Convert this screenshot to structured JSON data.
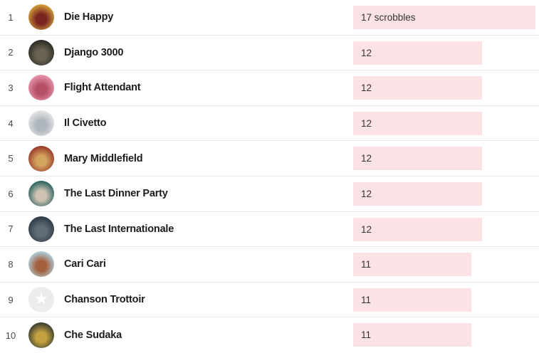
{
  "chart_data": {
    "type": "bar",
    "orientation": "horizontal",
    "title": "",
    "unit": "scrobbles",
    "categories": [
      "Die Happy",
      "Django 3000",
      "Flight Attendant",
      "Il Civetto",
      "Mary Middlefield",
      "The Last Dinner Party",
      "The Last Internationale",
      "Cari Cari",
      "Chanson Trottoir",
      "Che Sudaka"
    ],
    "values": [
      17,
      12,
      12,
      12,
      12,
      12,
      12,
      11,
      11,
      11
    ],
    "value_labels": [
      "17 scrobbles",
      "12",
      "12",
      "12",
      "12",
      "12",
      "12",
      "11",
      "11",
      "11"
    ],
    "max_value": 17,
    "xlim": [
      0,
      17
    ],
    "grid": false,
    "legend": false,
    "bar_color": "#fae2e5"
  },
  "list": {
    "rows": [
      {
        "rank": "1",
        "artist": "Die Happy",
        "value": 17,
        "bar_label": "17 scrobbles",
        "avatar": {
          "type": "photo",
          "inner": "#7a2420",
          "outer": "#d2a13c"
        }
      },
      {
        "rank": "2",
        "artist": "Django 3000",
        "value": 12,
        "bar_label": "12",
        "avatar": {
          "type": "photo",
          "inner": "#6a6352",
          "outer": "#2c2b24"
        }
      },
      {
        "rank": "3",
        "artist": "Flight Attendant",
        "value": 12,
        "bar_label": "12",
        "avatar": {
          "type": "photo",
          "inner": "#b44f66",
          "outer": "#e794ab"
        }
      },
      {
        "rank": "4",
        "artist": "Il Civetto",
        "value": 12,
        "bar_label": "12",
        "avatar": {
          "type": "photo",
          "inner": "#aeb6bd",
          "outer": "#e4e5e7"
        }
      },
      {
        "rank": "5",
        "artist": "Mary Middlefield",
        "value": 12,
        "bar_label": "12",
        "avatar": {
          "type": "photo",
          "inner": "#d3a45e",
          "outer": "#99392a"
        }
      },
      {
        "rank": "6",
        "artist": "The Last Dinner Party",
        "value": 12,
        "bar_label": "12",
        "avatar": {
          "type": "photo",
          "inner": "#cfc2b2",
          "outer": "#2a6360"
        }
      },
      {
        "rank": "7",
        "artist": "The Last Internationale",
        "value": 12,
        "bar_label": "12",
        "avatar": {
          "type": "photo",
          "inner": "#5f6d79",
          "outer": "#2e3a44"
        }
      },
      {
        "rank": "8",
        "artist": "Cari Cari",
        "value": 11,
        "bar_label": "11",
        "avatar": {
          "type": "photo",
          "inner": "#a4603c",
          "outer": "#aecfdc"
        }
      },
      {
        "rank": "9",
        "artist": "Chanson Trottoir",
        "value": 11,
        "bar_label": "11",
        "avatar": {
          "type": "placeholder",
          "background": "#ececec",
          "star_color": "#ffffff"
        }
      },
      {
        "rank": "10",
        "artist": "Che Sudaka",
        "value": 11,
        "bar_label": "11",
        "avatar": {
          "type": "photo",
          "inner": "#c2a23e",
          "outer": "#3b3d31"
        }
      }
    ]
  },
  "style": {
    "bar_color": "#fae2e5",
    "divider_color": "#e7e7e7",
    "name_color": "#1c1c1c",
    "rank_color": "#4a4a4a",
    "bar_label_color": "#333333",
    "background": "#ffffff"
  }
}
